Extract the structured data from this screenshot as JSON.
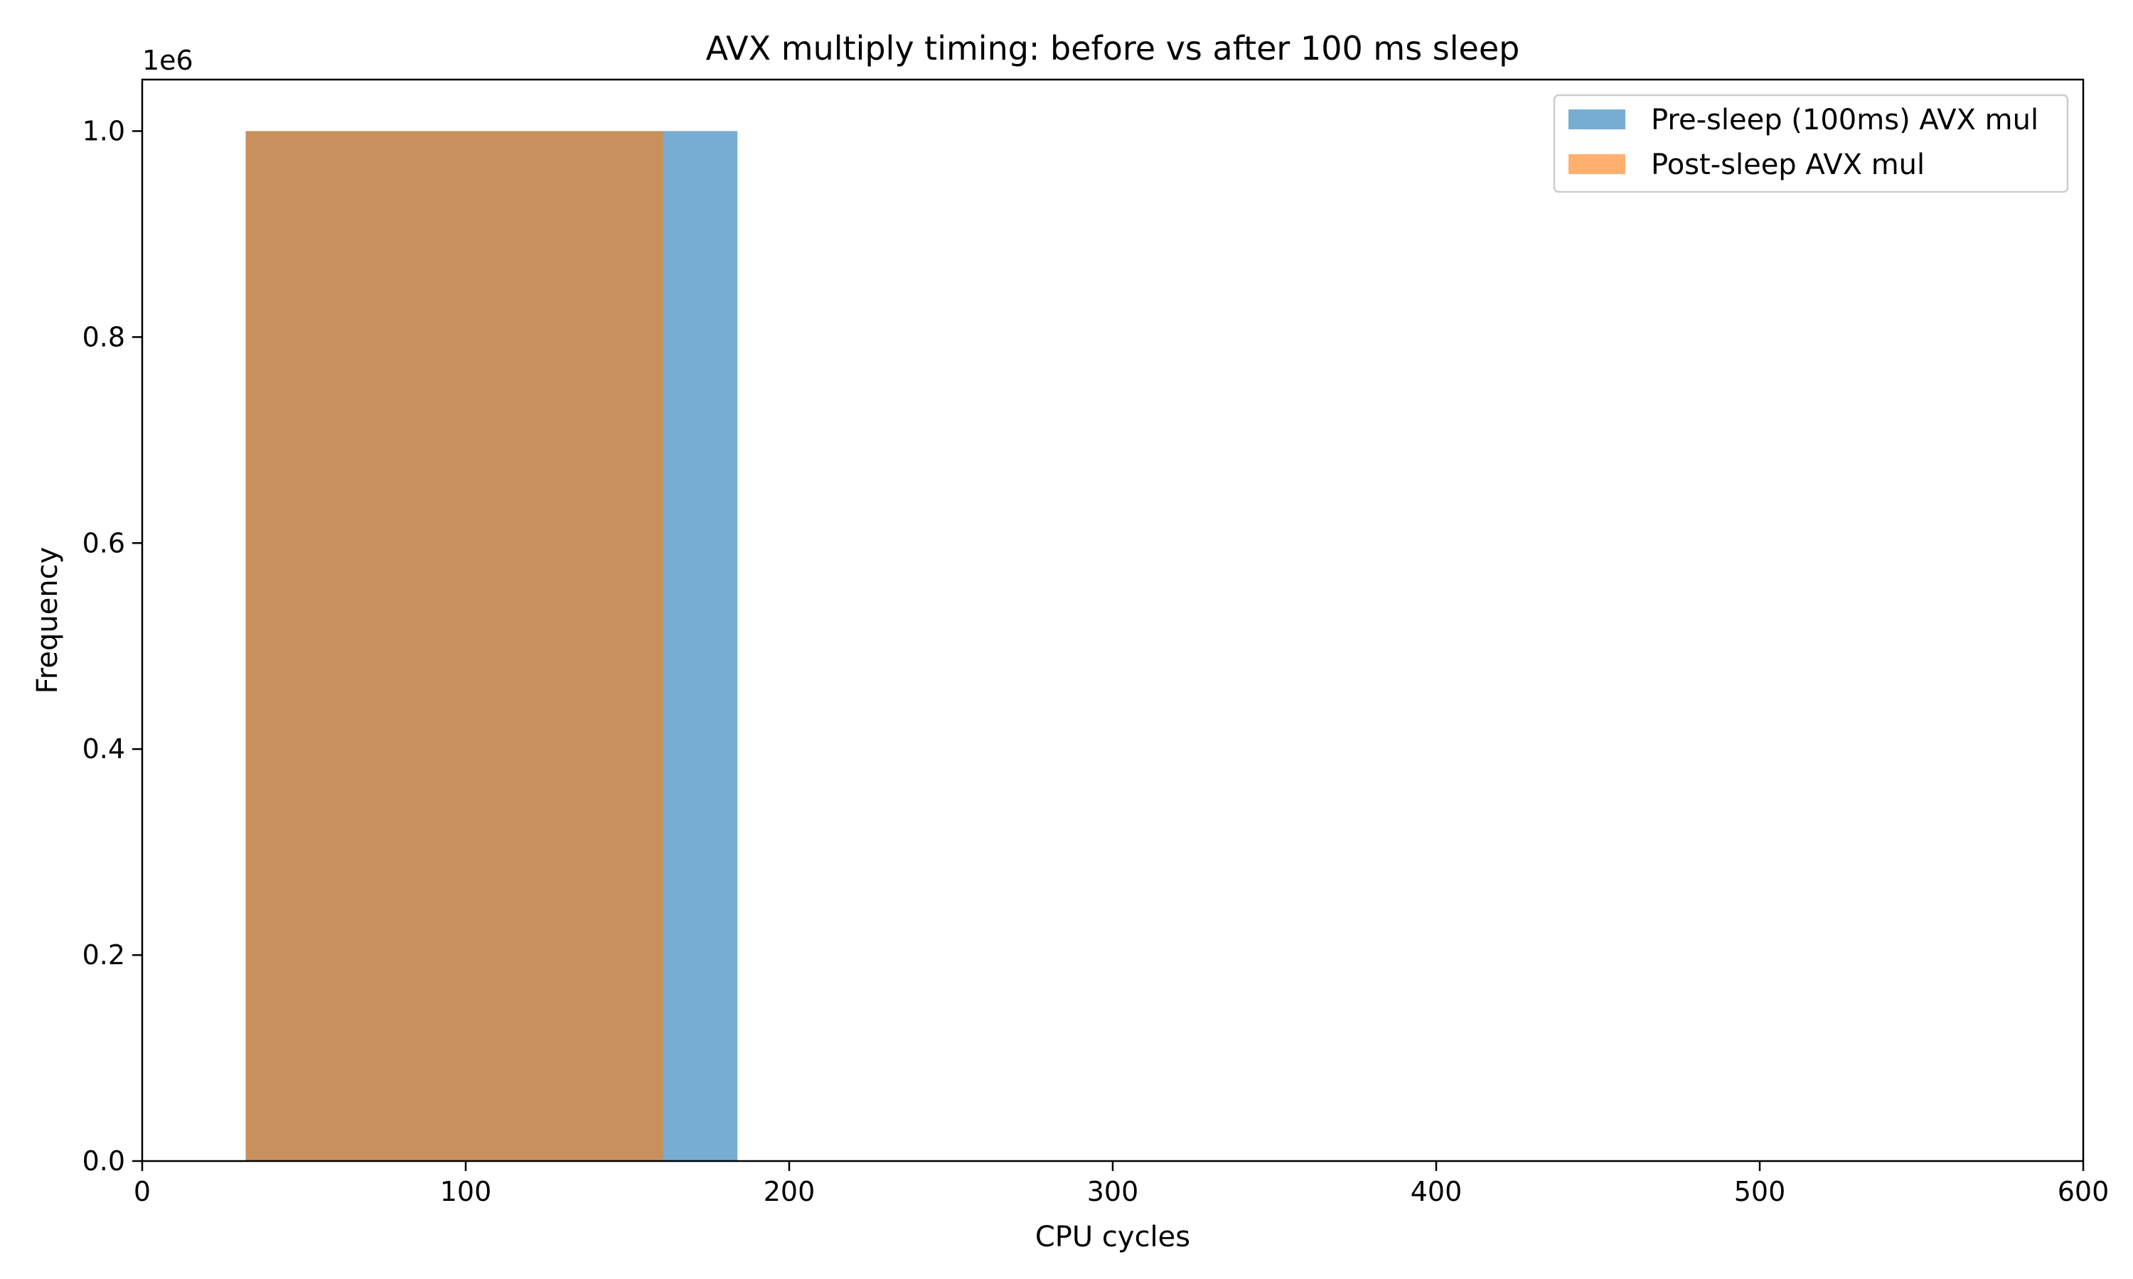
{
  "chart_data": {
    "type": "bar",
    "title": "AVX multiply timing: before vs after 100 ms sleep",
    "xlabel": "CPU cycles",
    "ylabel": "Frequency",
    "y_offset_label": "1e6",
    "xlim": [
      0,
      600
    ],
    "ylim": [
      0,
      1.05
    ],
    "x_ticks": [
      {
        "value": 0,
        "label": "0"
      },
      {
        "value": 100,
        "label": "100"
      },
      {
        "value": 200,
        "label": "200"
      },
      {
        "value": 300,
        "label": "300"
      },
      {
        "value": 400,
        "label": "400"
      },
      {
        "value": 500,
        "label": "500"
      },
      {
        "value": 600,
        "label": "600"
      }
    ],
    "y_ticks": [
      {
        "value": 0.0,
        "label": "0.0"
      },
      {
        "value": 0.2,
        "label": "0.2"
      },
      {
        "value": 0.4,
        "label": "0.4"
      },
      {
        "value": 0.6,
        "label": "0.6"
      },
      {
        "value": 0.8,
        "label": "0.8"
      },
      {
        "value": 1.0,
        "label": "1.0"
      }
    ],
    "grid": false,
    "legend_position": "top-right",
    "series": [
      {
        "name": "Pre-sleep (100ms) AVX mul",
        "color": "#77acd3",
        "bins": [
          {
            "x_start": 32,
            "x_end": 184,
            "value": 1.0
          }
        ]
      },
      {
        "name": "Post-sleep AVX mul",
        "color": "#ffb06f",
        "bins": [
          {
            "x_start": 32,
            "x_end": 161,
            "value": 1.0
          }
        ]
      }
    ],
    "overlap_color": "#c8905c"
  }
}
